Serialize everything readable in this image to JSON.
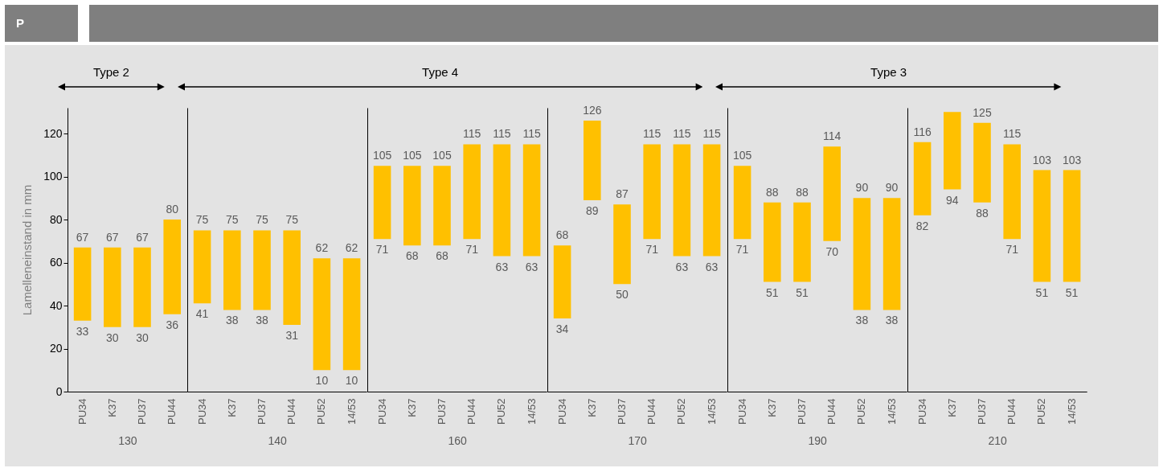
{
  "chart_data": [
    {
      "type": "bar",
      "title": "P",
      "subtitle": "Type 2",
      "xlabel": "130",
      "ylabel": "Lamelleneinstand in mm",
      "categories": [
        "PU34",
        "K37",
        "PU37",
        "PU44"
      ],
      "base": [
        33,
        30,
        30,
        36
      ],
      "values": [
        34,
        37,
        37,
        44
      ],
      "value_labels": [
        "67",
        "67",
        "67",
        "80"
      ],
      "color": "#ffc000",
      "ylim": [
        0,
        132
      ],
      "yticks": [
        0,
        20,
        40,
        60,
        80,
        100,
        120
      ],
      "annotations": [
        {
          "text": "33",
          "x": "PU34",
          "y": 33
        },
        {
          "text": "30",
          "x": "K37",
          "y": 30
        },
        {
          "text": "30",
          "x": "PU37",
          "y": 30
        },
        {
          "text": "36",
          "x": "PU44",
          "y": 36
        }
      ]
    },
    {
      "type": "bar",
      "xlabel": "140",
      "categories": [
        "PU34",
        "K37",
        "PU37",
        "PU44",
        "PU52",
        "14/53"
      ],
      "base": [
        41,
        38,
        38,
        31,
        10,
        10
      ],
      "values": [
        34,
        37,
        37,
        44,
        52,
        52
      ],
      "value_labels": [
        "75",
        "75",
        "75",
        "75",
        "62",
        "62"
      ],
      "color": "#ffc000",
      "ylim": [
        0,
        132
      ],
      "tick_labels": "x",
      "annotations": [
        {
          "text": "41",
          "x": "PU34",
          "y": 41
        },
        {
          "text": "38",
          "x": "K37",
          "y": 38
        },
        {
          "text": "38",
          "x": "PU37",
          "y": 38
        },
        {
          "text": "31",
          "x": "PU44",
          "y": 31
        },
        {
          "text": "10",
          "x": "PU52",
          "y": 10
        },
        {
          "text": "10",
          "x": "14/53",
          "y": 10
        }
      ]
    },
    {
      "type": "bar",
      "subtitle": "Type 4",
      "xlabel": "160",
      "categories": [
        "PU34",
        "K37",
        "PU37",
        "PU44",
        "PU52",
        "14/53"
      ],
      "base": [
        71,
        68,
        68,
        71,
        63,
        63
      ],
      "values": [
        34,
        37,
        37,
        44,
        52,
        52
      ],
      "value_labels": [
        "105",
        "105",
        "105",
        "115",
        "115",
        "115"
      ],
      "color": "#ffc000",
      "ylim": [
        0,
        132
      ],
      "tick_labels": "x",
      "annotations": [
        {
          "text": "71",
          "x": "PU34",
          "y": 71
        },
        {
          "text": "68",
          "x": "K37",
          "y": 68
        },
        {
          "text": "68",
          "x": "PU37",
          "y": 68
        },
        {
          "text": "71",
          "x": "PU44",
          "y": 71
        },
        {
          "text": "63",
          "x": "PU52",
          "y": 63
        },
        {
          "text": "63",
          "x": "14/53",
          "y": 63
        }
      ]
    },
    {
      "type": "bar",
      "xlabel": "170",
      "categories": [
        "PU34",
        "K37",
        "PU37",
        "PU44",
        "PU52",
        "14/53"
      ],
      "base": [
        34,
        89,
        50,
        71,
        63,
        63
      ],
      "values": [
        34,
        37,
        37,
        44,
        52,
        52
      ],
      "value_labels": [
        "68",
        "126",
        "87",
        "115",
        "115",
        "115"
      ],
      "color": "#ffc000",
      "ylim": [
        0,
        132
      ],
      "tick_labels": "x",
      "annotations": [
        {
          "text": "34",
          "x": "PU34",
          "y": 34
        },
        {
          "text": "89",
          "x": "K37",
          "y": 89
        },
        {
          "text": "50",
          "x": "PU37",
          "y": 50
        },
        {
          "text": "71",
          "x": "PU44",
          "y": 71
        },
        {
          "text": "63",
          "x": "PU52",
          "y": 63
        },
        {
          "text": "63",
          "x": "14/53",
          "y": 63
        }
      ]
    },
    {
      "type": "bar",
      "subtitle": "Type 3",
      "xlabel": "190",
      "categories": [
        "PU34",
        "K37",
        "PU37",
        "PU44",
        "PU52",
        "14/53"
      ],
      "base": [
        71,
        51,
        51,
        70,
        38,
        38
      ],
      "values": [
        34,
        37,
        37,
        44,
        52,
        52
      ],
      "value_labels": [
        "105",
        "88",
        "88",
        "114",
        "90",
        "90"
      ],
      "color": "#ffc000",
      "ylim": [
        0,
        132
      ],
      "tick_labels": "x",
      "annotations": [
        {
          "text": "71",
          "x": "PU34",
          "y": 71
        },
        {
          "text": "51",
          "x": "K37",
          "y": 51
        },
        {
          "text": "51",
          "x": "PU37",
          "y": 51
        },
        {
          "text": "70",
          "x": "PU44",
          "y": 70
        },
        {
          "text": "38",
          "x": "PU52",
          "y": 38
        },
        {
          "text": "38",
          "x": "14/53",
          "y": 38
        }
      ]
    },
    {
      "type": "bar",
      "xlabel": "210",
      "categories": [
        "PU34",
        "K37",
        "PU37",
        "PU44",
        "PU52",
        "14/53"
      ],
      "base": [
        82,
        94,
        88,
        71,
        51,
        51
      ],
      "values": [
        34,
        36,
        37,
        44,
        52,
        52
      ],
      "value_labels": [
        "116",
        null,
        "125",
        "115",
        "103",
        "103"
      ],
      "color": "#ffc000",
      "ylim": [
        0,
        132
      ],
      "tick_labels": "x",
      "annotations": [
        {
          "text": "82",
          "x": "PU34",
          "y": 82
        },
        {
          "text": "94",
          "x": "K37",
          "y": 94
        },
        {
          "text": "88",
          "x": "PU37",
          "y": 88
        },
        {
          "text": "71",
          "x": "PU44",
          "y": 71
        },
        {
          "text": "51",
          "x": "PU52",
          "y": 51
        },
        {
          "text": "51",
          "x": "14/53",
          "y": 51
        }
      ]
    }
  ]
}
